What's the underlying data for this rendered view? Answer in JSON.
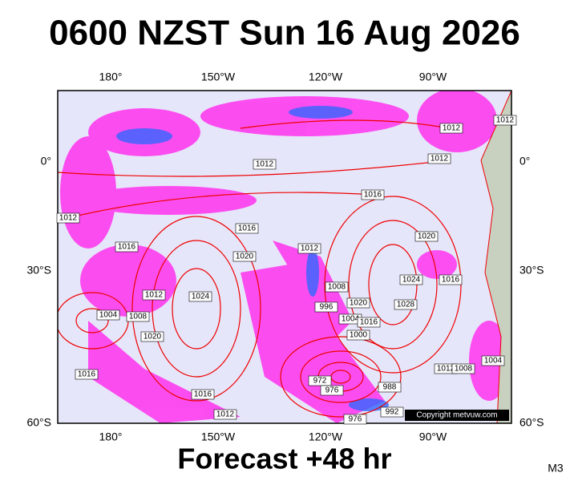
{
  "header": {
    "title": "0600 NZST Sun 16 Aug 2026"
  },
  "map": {
    "lon_labels": [
      "180°",
      "150°W",
      "120°W",
      "90°W"
    ],
    "lat_labels": [
      "0°",
      "30°S",
      "60°S"
    ],
    "isobar_labels": [
      1012,
      1012,
      1012,
      1012,
      1016,
      1012,
      1016,
      1016,
      1020,
      1012,
      1020,
      1016,
      1024,
      1012,
      1024,
      1004,
      1008,
      1008,
      996,
      1020,
      1004,
      1000,
      1016,
      1028,
      1020,
      1016,
      1016,
      1012,
      972,
      976,
      988,
      992,
      976,
      1012,
      1008,
      1004
    ],
    "copyright": "Copyright metvuw.com"
  },
  "footer": {
    "caption": "Forecast +48 hr",
    "model": "M3"
  }
}
